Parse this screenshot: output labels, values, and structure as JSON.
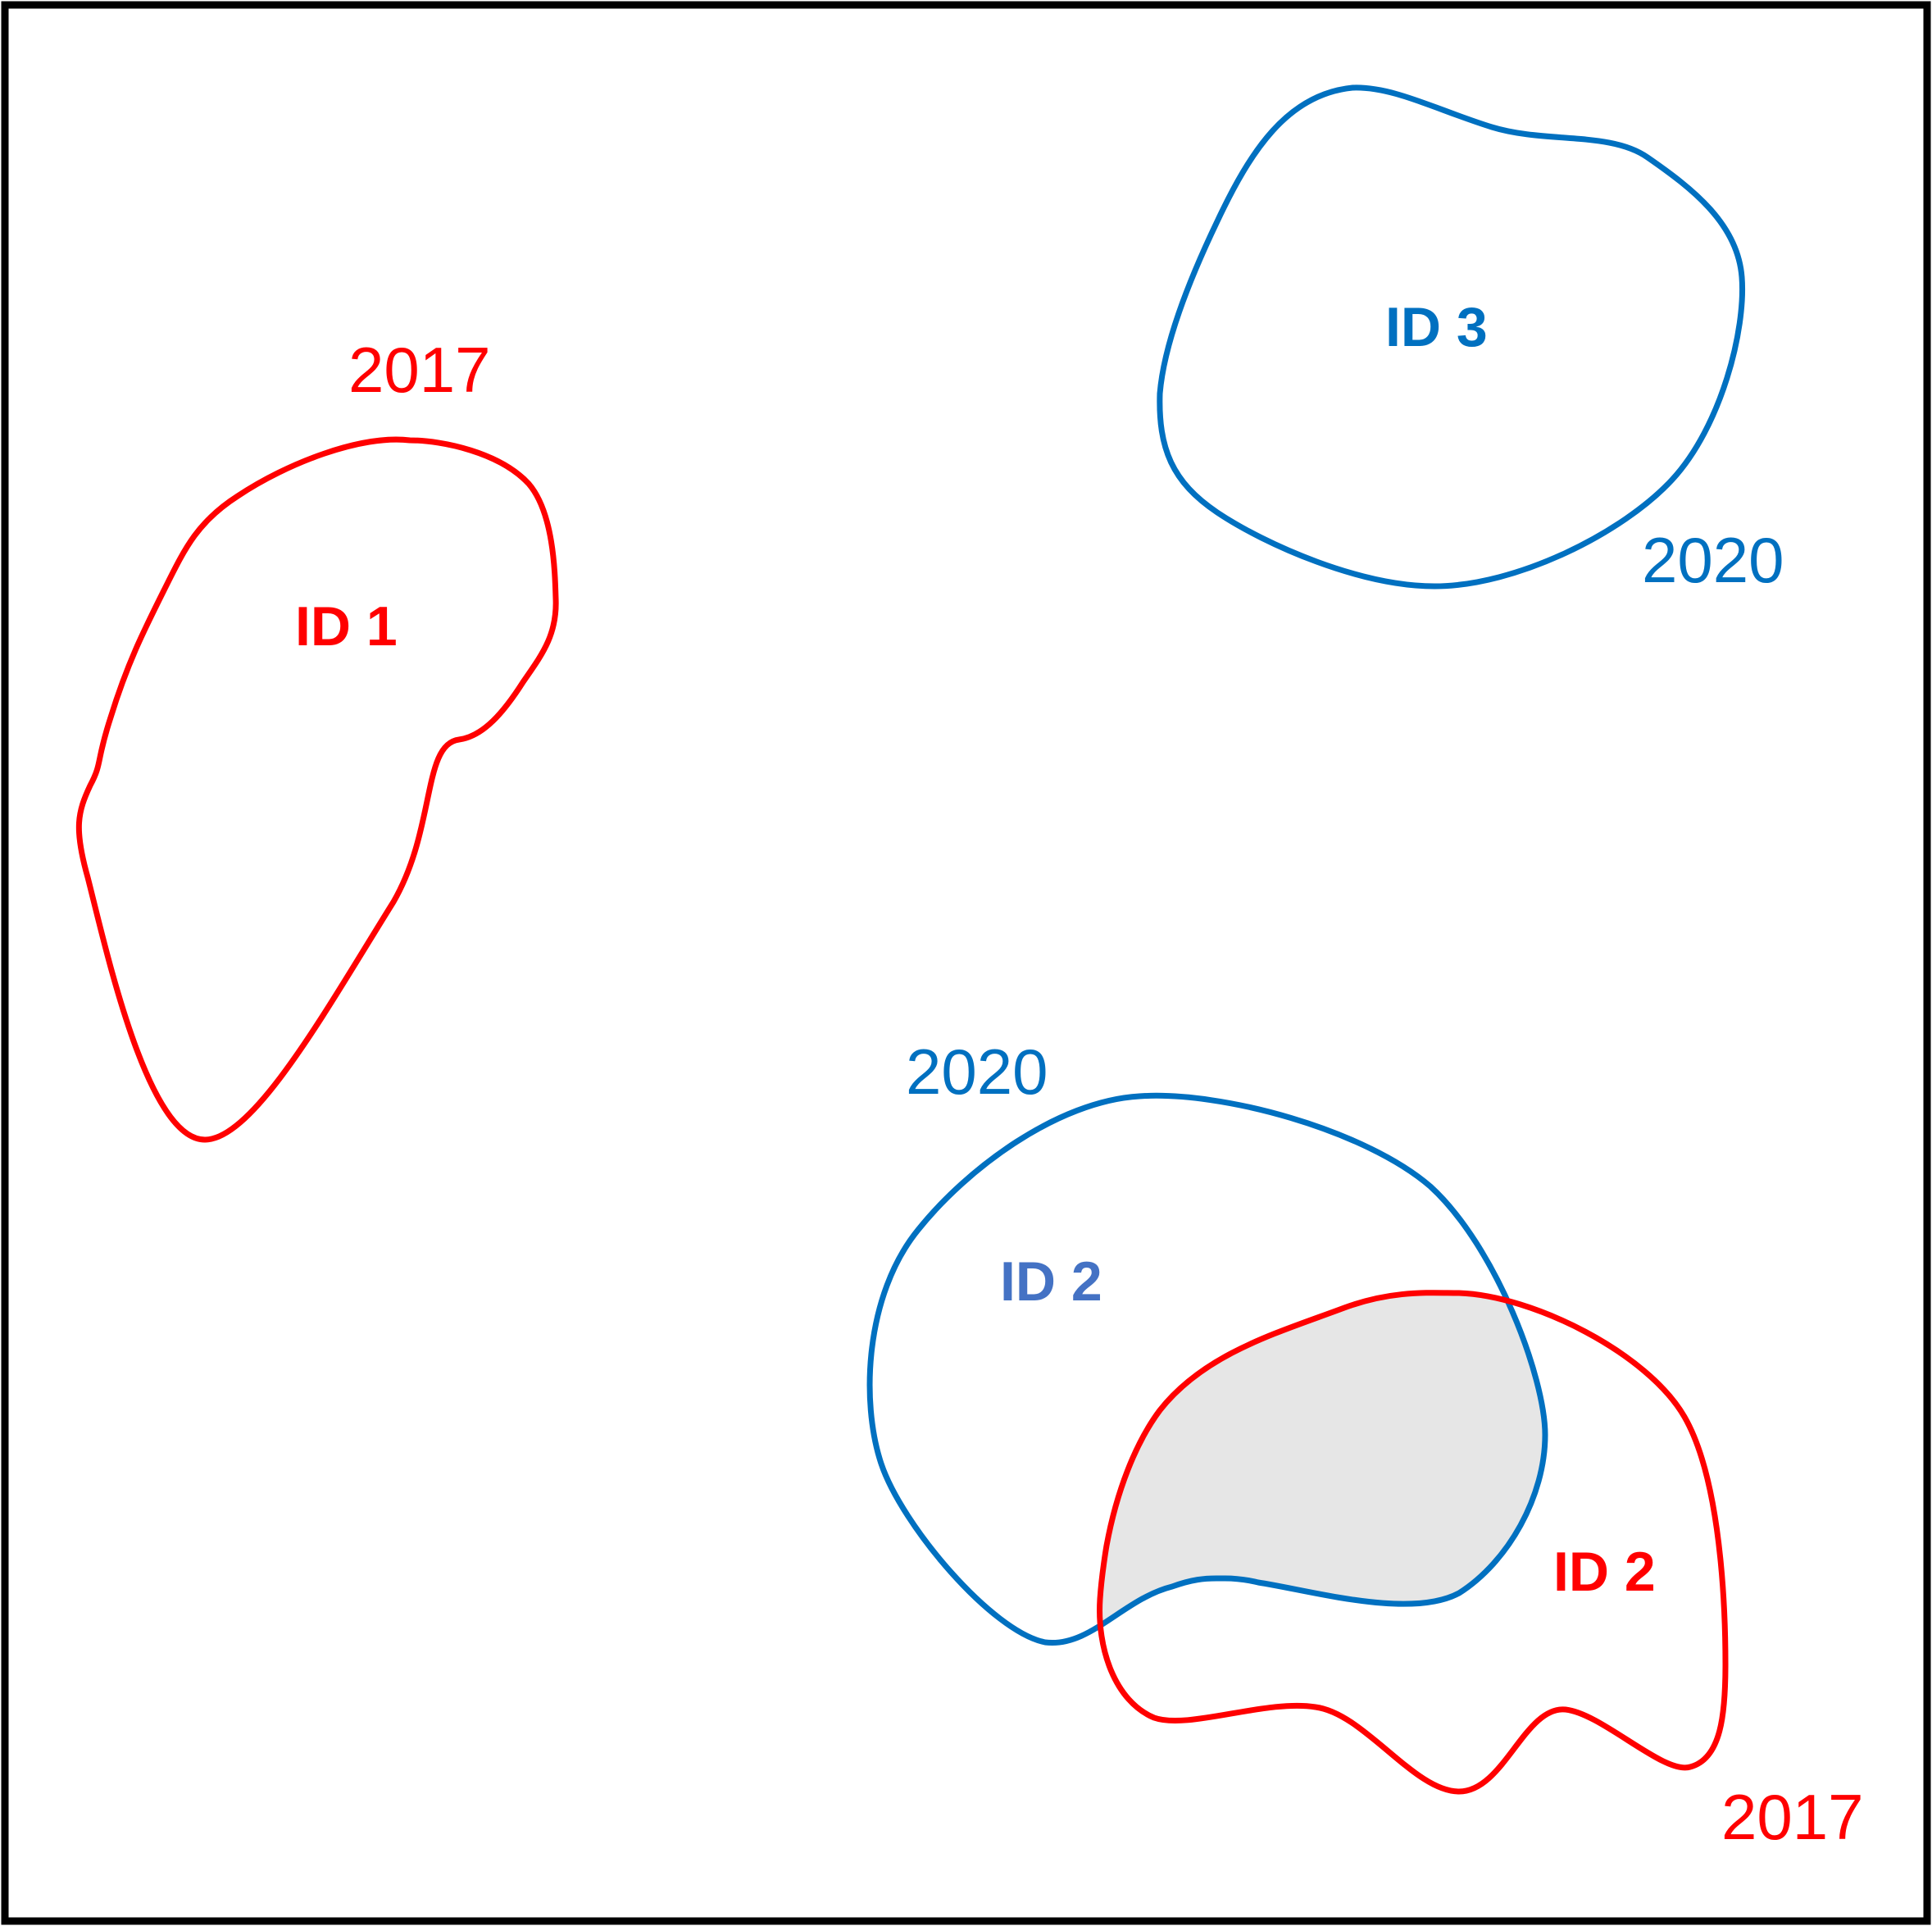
{
  "colors": {
    "red": "#ff0000",
    "blue": "#0070c0",
    "id2_blue": "#4472c4",
    "overlap_fill": "#e6e6e6",
    "border": "#000000",
    "background": "#ffffff"
  },
  "polygons": {
    "id1_2017": {
      "id_label": "ID 1",
      "year_label": "2017",
      "color_key": "red"
    },
    "id3_2020": {
      "id_label": "ID 3",
      "year_label": "2020",
      "color_key": "blue"
    },
    "id2_2020": {
      "id_label": "ID 2",
      "year_label": "2020",
      "color_key": "blue"
    },
    "id2_2017": {
      "id_label": "ID 2",
      "year_label": "2017",
      "color_key": "red"
    }
  },
  "overlap": {
    "between": [
      "id2_2020",
      "id2_2017"
    ],
    "fill_key": "overlap_fill"
  }
}
